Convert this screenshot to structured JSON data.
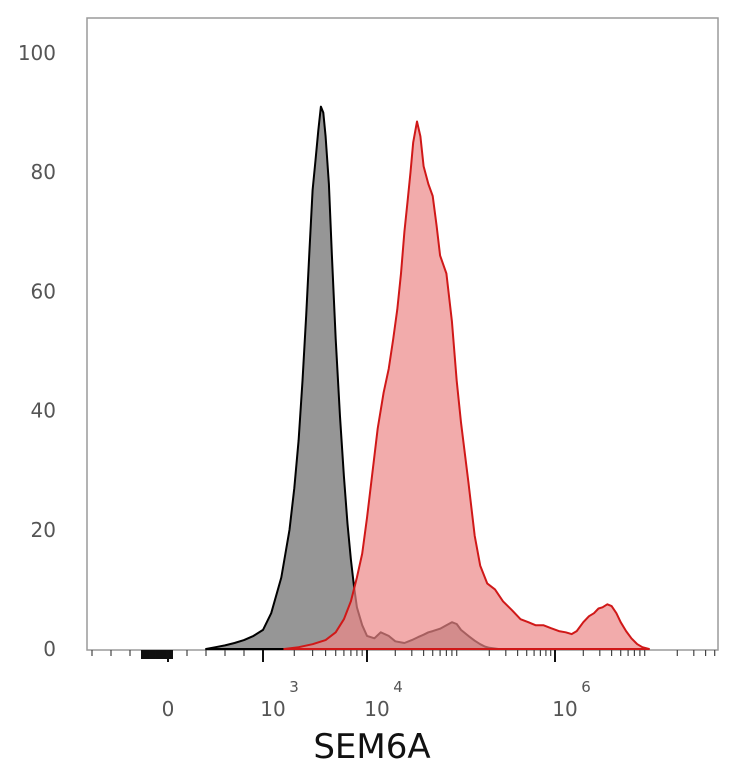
{
  "chart_data": {
    "type": "area",
    "title": "",
    "xlabel": "SEM6A",
    "ylabel": "",
    "x_scale": "biexponential",
    "ylim": [
      0,
      100
    ],
    "yticks": [
      0,
      20,
      40,
      60,
      80,
      100
    ],
    "ytick_labels": [
      "0",
      "20",
      "40",
      "60",
      "80",
      "100"
    ],
    "xticks": [
      {
        "value": 0,
        "label": "0",
        "exponent": ""
      },
      {
        "value": 1000,
        "label": "10",
        "exponent": "3"
      },
      {
        "value": 10000,
        "label": "10",
        "exponent": "4"
      },
      {
        "value": 1000000,
        "label": "10",
        "exponent": "6"
      }
    ],
    "grid": false,
    "legend": "none",
    "series": [
      {
        "color": "#808080",
        "fill": "#7f7f7f",
        "stroke": "#000000",
        "x": [
          400,
          500,
          600,
          700,
          800,
          900,
          1000,
          1200,
          1500,
          1800,
          2000,
          2200,
          2400,
          2600,
          2800,
          3000,
          3200,
          3400,
          3600,
          3800,
          4000,
          4300,
          4600,
          5000,
          5500,
          6000,
          6500,
          7000,
          7500,
          8000,
          9000,
          10000,
          12000,
          14000,
          17000,
          20000,
          25000,
          30000,
          35000,
          40000,
          45000,
          50000,
          60000,
          70000,
          80000,
          90000,
          100000,
          120000,
          140000,
          160000,
          180000,
          200000,
          250000,
          300000
        ],
        "y": [
          0,
          0.3,
          0.6,
          1,
          1.5,
          2.2,
          3.2,
          6,
          12,
          20,
          27,
          35,
          45,
          56,
          67,
          77,
          82,
          87,
          91,
          90,
          86,
          78,
          66,
          52,
          39,
          29,
          21,
          15,
          10.5,
          7,
          4,
          2.2,
          1.8,
          2.8,
          2.2,
          1.3,
          1.0,
          1.5,
          2.0,
          2.4,
          2.8,
          3.0,
          3.4,
          4.0,
          4.5,
          4.2,
          3.2,
          2.2,
          1.4,
          0.8,
          0.4,
          0.2,
          0,
          0
        ]
      },
      {
        "color": "#e06666",
        "fill": "#ec8888",
        "stroke": "#d01818",
        "x": [
          1600,
          2200,
          3000,
          4000,
          5000,
          6000,
          7000,
          8000,
          9000,
          10000,
          11500,
          13000,
          15000,
          17000,
          19000,
          21000,
          23000,
          25000,
          27000,
          29000,
          31000,
          34000,
          37000,
          40000,
          45000,
          50000,
          55000,
          60000,
          70000,
          80000,
          90000,
          100000,
          120000,
          140000,
          160000,
          190000,
          230000,
          280000,
          350000,
          430000,
          520000,
          620000,
          750000,
          900000,
          1100000,
          1300000,
          1500000,
          1700000,
          2000000,
          2300000,
          2600000,
          2900000,
          3200000,
          3600000,
          4000000,
          4500000,
          5000000,
          5700000,
          6500000,
          7500000,
          8500000,
          10000000
        ],
        "y": [
          0,
          0.3,
          0.8,
          1.5,
          2.8,
          5,
          8,
          12,
          16,
          22,
          30,
          37,
          43,
          47,
          52,
          57,
          63,
          70,
          75,
          80,
          85,
          88.5,
          86,
          81,
          78,
          76,
          71,
          66,
          63,
          55,
          45,
          38,
          28,
          19,
          14,
          11,
          10,
          8,
          6.5,
          5,
          4.5,
          4,
          4,
          3.5,
          3,
          2.8,
          2.5,
          3,
          4.5,
          5.5,
          6,
          6.8,
          7,
          7.5,
          7.2,
          6,
          4.5,
          3,
          1.8,
          0.8,
          0.3,
          0
        ]
      }
    ]
  }
}
